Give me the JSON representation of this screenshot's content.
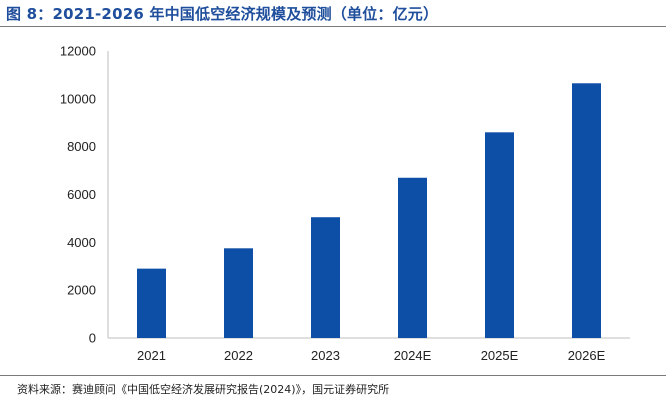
{
  "header": {
    "title": "图 8：2021-2026 年中国低空经济规模及预测（单位：亿元）"
  },
  "footer": {
    "source": "资料来源：赛迪顾问《中国低空经济发展研究报告(2024)》，国元证券研究所"
  },
  "colors": {
    "title": "#1f4e9c",
    "bar": "#0d4ea6",
    "axis": "#bfbfbf",
    "rule": "#7a7a7a"
  },
  "chart_data": {
    "type": "bar",
    "title": "",
    "xlabel": "",
    "ylabel": "",
    "categories": [
      "2021",
      "2022",
      "2023",
      "2024E",
      "2025E",
      "2026E"
    ],
    "values": [
      2900,
      3750,
      5050,
      6700,
      8600,
      10650
    ],
    "ylim": [
      0,
      12000
    ],
    "yticks": [
      0,
      2000,
      4000,
      6000,
      8000,
      10000,
      12000
    ],
    "grid": false,
    "legend": "none"
  }
}
